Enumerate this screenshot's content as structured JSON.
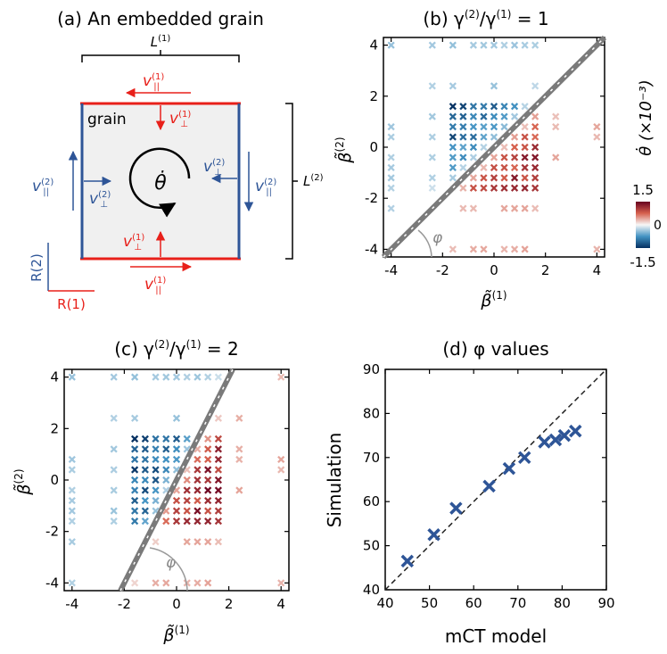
{
  "colors": {
    "red": "#e8201a",
    "blue": "#2e5597",
    "grain_fill": "#f0f0f0",
    "diag": "#7a7a7a",
    "dashed": "#222222",
    "marker_d": "#2e5597"
  },
  "panel_a": {
    "title": "(a) An embedded grain",
    "L1_base": "L",
    "L1_sup": "(1)",
    "L2_base": "L",
    "L2_sup": "(2)",
    "grain_label": "grain",
    "theta_dot": "θ̇",
    "v_par": "v",
    "v_par_sub": "||",
    "v_par_sup": "(1)",
    "v_perp_sub": "⊥",
    "sup1": "(1)",
    "sup2": "(2)",
    "r1": "R(1)",
    "r2": "R(2)"
  },
  "chart_data": [
    {
      "id": "b",
      "type": "scatter",
      "title_pre": "(b) γ",
      "title_sup1": "(2)",
      "title_mid": "/γ",
      "title_sup2": "(1)",
      "title_post": " = 1",
      "xlabel": "β̃",
      "xlabel_sup": "(1)",
      "ylabel": "β̃",
      "ylabel_sup": "(2)",
      "xlim": [
        -4.3,
        4.3
      ],
      "ylim": [
        -4.3,
        4.3
      ],
      "ticks": [
        -4,
        -2,
        0,
        2,
        4
      ],
      "ratio": 1,
      "angle_label": "φ",
      "colorbar": {
        "label": "θ̇ (×10⁻³)",
        "max_label": "1.5",
        "mid_label": "0",
        "min_label": "-1.5",
        "range": [
          -1.5,
          1.5
        ]
      },
      "grid_values": [
        -4,
        -2.4,
        -1.6,
        -1.2,
        -0.8,
        -0.4,
        0,
        0.4,
        0.8,
        1.2,
        1.6,
        2.4,
        4
      ]
    },
    {
      "id": "c",
      "type": "scatter",
      "title_pre": "(c) γ",
      "title_sup1": "(2)",
      "title_mid": "/γ",
      "title_sup2": "(1)",
      "title_post": " = 2",
      "xlabel": "β̃",
      "xlabel_sup": "(1)",
      "ylabel": "β̃",
      "ylabel_sup": "(2)",
      "xlim": [
        -4.3,
        4.3
      ],
      "ylim": [
        -4.3,
        4.3
      ],
      "ticks": [
        -4,
        -2,
        0,
        2,
        4
      ],
      "ratio": 2,
      "angle_label": "φ",
      "grid_values": [
        -4,
        -2.4,
        -1.6,
        -1.2,
        -0.8,
        -0.4,
        0,
        0.4,
        0.8,
        1.2,
        1.6,
        2.4,
        4
      ]
    },
    {
      "id": "d",
      "type": "scatter",
      "title": "(d) φ values",
      "xlabel": "mCT model",
      "ylabel": "Simulation",
      "xlim": [
        40,
        90
      ],
      "ylim": [
        40,
        90
      ],
      "ticks": [
        40,
        50,
        60,
        70,
        80,
        90
      ],
      "x": [
        45,
        51,
        56,
        63.5,
        68,
        71.5,
        76,
        78.5,
        80.5,
        83
      ],
      "y": [
        46.5,
        52.5,
        58.5,
        63.5,
        67.5,
        70,
        73.5,
        74,
        75,
        76
      ],
      "reference_line": "y = x"
    }
  ]
}
